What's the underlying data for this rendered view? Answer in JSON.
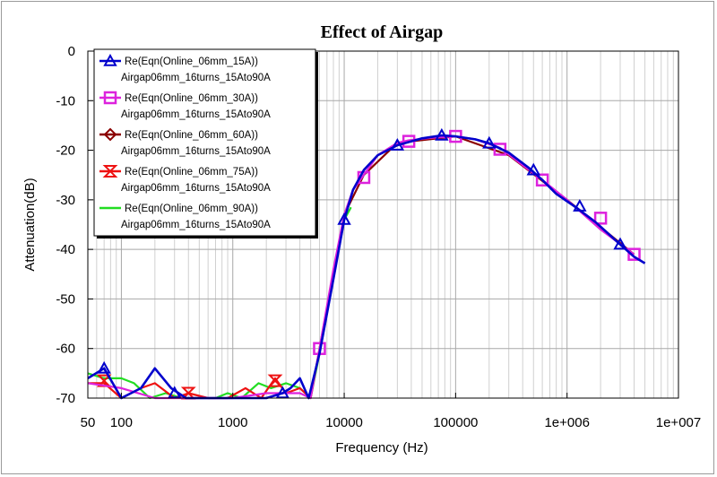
{
  "chart_data": {
    "type": "line",
    "title": "Effect of Airgap",
    "xlabel": "Frequency (Hz)",
    "ylabel": "Attenuation(dB)",
    "x_scale": "log",
    "xlim": [
      50,
      10000000
    ],
    "ylim": [
      -70,
      0
    ],
    "grid": true,
    "legend_position": "top-left",
    "x_tick_labels": [
      "50",
      "100",
      "1000",
      "10000",
      "100000",
      "1e+006",
      "1e+007"
    ],
    "x_tick_values": [
      50,
      100,
      1000,
      10000,
      100000,
      1000000,
      10000000
    ],
    "y_tick_labels": [
      "0",
      "-10",
      "-20",
      "-30",
      "-40",
      "-50",
      "-60",
      "-70"
    ],
    "y_tick_values": [
      0,
      -10,
      -20,
      -30,
      -40,
      -50,
      -60,
      -70
    ],
    "series": [
      {
        "name": "Re(Eqn(Online_06mm_15A))",
        "sublabel": "Airgap06mm_16turns_15Ato90A",
        "color": "#0000cc",
        "marker": "triangle-up",
        "x": [
          50,
          70,
          100,
          150,
          200,
          280,
          380,
          500,
          700,
          1000,
          1500,
          2000,
          2800,
          3300,
          4000,
          4800,
          6000,
          8000,
          10000,
          12000,
          15000,
          20000,
          30000,
          50000,
          75000,
          100000,
          150000,
          200000,
          300000,
          450000,
          600000,
          800000,
          1200000,
          1800000,
          3000000,
          4000000,
          5000000
        ],
        "y": [
          -66,
          -64,
          -70,
          -68,
          -64,
          -68,
          -70,
          -70,
          -70,
          -70,
          -70,
          -70,
          -69,
          -68,
          -66,
          -70,
          -61,
          -46,
          -34,
          -28,
          -24,
          -21,
          -19,
          -17.6,
          -17,
          -17.2,
          -17.8,
          -18.6,
          -20.5,
          -23.5,
          -26,
          -28.8,
          -31.5,
          -34.5,
          -39,
          -41.5,
          -42.8
        ],
        "marker_x": [
          70,
          300,
          2800,
          10000,
          30000,
          75000,
          200000,
          500000,
          1300000,
          3000000
        ],
        "marker_y": [
          -64,
          -69,
          -69,
          -34,
          -19,
          -17,
          -18.6,
          -24,
          -31.3,
          -39
        ]
      },
      {
        "name": "Re(Eqn(Online_06mm_30A))",
        "sublabel": "Airgap06mm_16turns_15Ato90A",
        "color": "#dd22dd",
        "marker": "square",
        "x": [
          50,
          100,
          200,
          400,
          700,
          1000,
          2000,
          3000,
          4000,
          5000,
          6000,
          8000,
          10000,
          12000,
          15000,
          20000,
          30000,
          38000,
          60000,
          100000,
          150000,
          250000,
          400000,
          600000,
          1000000,
          2000000,
          4000000
        ],
        "y": [
          -67,
          -68,
          -70,
          -70,
          -70,
          -70,
          -69,
          -69,
          -69,
          -70,
          -60,
          -44,
          -33,
          -28,
          -25,
          -21,
          -18.5,
          -18,
          -17.5,
          -17.2,
          -17.8,
          -19.5,
          -23,
          -26,
          -30,
          -36,
          -41
        ],
        "marker_x": [
          6000,
          15000,
          38000,
          100000,
          250000,
          600000,
          2000000,
          4000000
        ],
        "marker_y": [
          -60,
          -25.5,
          -18.2,
          -17.2,
          -19.8,
          -26,
          -33.7,
          -41
        ]
      },
      {
        "name": "Re(Eqn(Online_06mm_60A))",
        "sublabel": "Airgap06mm_16turns_15Ato90A",
        "color": "#8b0000",
        "marker": "diamond",
        "x": [
          6000,
          10000,
          15000,
          30000,
          100000,
          300000,
          1000000,
          4000000
        ],
        "y": [
          -60,
          -33,
          -25,
          -18.5,
          -17.2,
          -21,
          -30,
          -41
        ],
        "marker_x": [],
        "marker_y": []
      },
      {
        "name": "Re(Eqn(Online_06mm_75A))",
        "sublabel": "Airgap06mm_16turns_15Ato90A",
        "color": "#ee1111",
        "marker": "hourglass",
        "x": [
          50,
          70,
          100,
          150,
          200,
          300,
          400,
          600,
          900,
          1300,
          1800,
          2400,
          3000,
          4000,
          5000,
          6000
        ],
        "y": [
          -67,
          -67,
          -70,
          -68,
          -67,
          -70,
          -69,
          -70,
          -70,
          -68,
          -70,
          -66,
          -69,
          -68,
          -70,
          -60
        ],
        "marker_x": [
          70,
          400,
          2400
        ],
        "marker_y": [
          -66.5,
          -69,
          -66.5
        ]
      },
      {
        "name": "Re(Eqn(Online_06mm_90A))",
        "sublabel": "Airgap06mm_16turns_15Ato90A",
        "color": "#22dd22",
        "marker": "none",
        "x": [
          50,
          70,
          100,
          130,
          180,
          250,
          350,
          500,
          700,
          900,
          1200,
          1700,
          2200,
          3000,
          4000,
          5000,
          6000,
          10000,
          11500
        ],
        "y": [
          -65,
          -66,
          -66,
          -67,
          -70,
          -69,
          -70,
          -70,
          -70,
          -69,
          -70,
          -67,
          -68,
          -67,
          -68,
          -70,
          -61,
          -34,
          -31.5
        ],
        "marker_x": [],
        "marker_y": []
      }
    ]
  }
}
